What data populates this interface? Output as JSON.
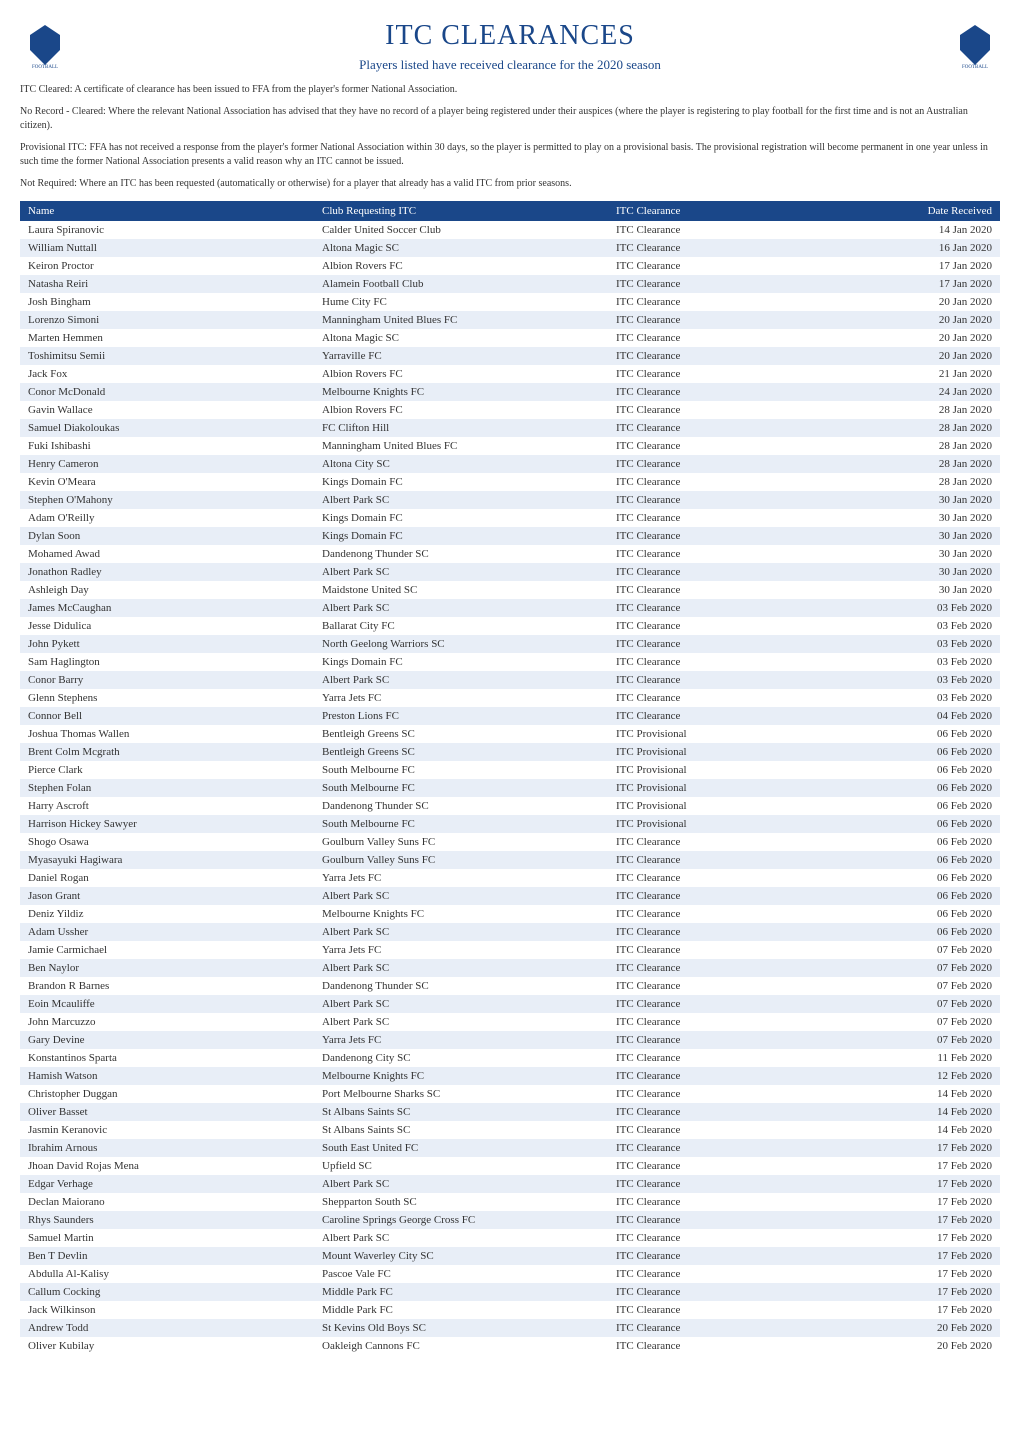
{
  "header": {
    "title": "ITC CLEARANCES",
    "subtitle": "Players listed have received clearance for the 2020 season"
  },
  "info": {
    "para1": "ITC Cleared: A certificate of clearance has been issued to FFA from the player's former National Association.",
    "para2": "No Record - Cleared: Where the relevant National Association has advised that they have no record of a player being registered under their auspices (where the player is registering to play football for the first time and is not an Australian citizen).",
    "para3": "Provisional ITC: FFA has not received a response from the player's former National Association within 30 days, so the player is permitted to play on a provisional basis. The provisional registration will become permanent in one year unless in such time the former National Association presents a valid reason why an ITC cannot be issued.",
    "para4": "Not Required: Where an ITC has been requested (automatically or otherwise) for a player that already has a valid ITC from prior seasons."
  },
  "table": {
    "headers": {
      "name": "Name",
      "club": "Club Requesting ITC",
      "clearance": "ITC Clearance",
      "date": "Date Received"
    },
    "rows": [
      {
        "name": "Laura Spiranovic",
        "club": "Calder United Soccer Club",
        "clearance": "ITC Clearance",
        "date": "14 Jan 2020"
      },
      {
        "name": "William Nuttall",
        "club": "Altona Magic SC",
        "clearance": "ITC Clearance",
        "date": "16 Jan 2020"
      },
      {
        "name": "Keiron Proctor",
        "club": "Albion Rovers FC",
        "clearance": "ITC Clearance",
        "date": "17 Jan 2020"
      },
      {
        "name": "Natasha Reiri",
        "club": "Alamein Football Club",
        "clearance": "ITC Clearance",
        "date": "17 Jan 2020"
      },
      {
        "name": "Josh Bingham",
        "club": "Hume City FC",
        "clearance": "ITC Clearance",
        "date": "20 Jan 2020"
      },
      {
        "name": "Lorenzo Simoni",
        "club": "Manningham United Blues FC",
        "clearance": "ITC Clearance",
        "date": "20 Jan 2020"
      },
      {
        "name": "Marten Hemmen",
        "club": "Altona Magic SC",
        "clearance": "ITC Clearance",
        "date": "20 Jan 2020"
      },
      {
        "name": "Toshimitsu Semii",
        "club": "Yarraville FC",
        "clearance": "ITC Clearance",
        "date": "20 Jan 2020"
      },
      {
        "name": "Jack Fox",
        "club": "Albion Rovers FC",
        "clearance": "ITC Clearance",
        "date": "21 Jan 2020"
      },
      {
        "name": "Conor McDonald",
        "club": "Melbourne Knights FC",
        "clearance": "ITC Clearance",
        "date": "24 Jan 2020"
      },
      {
        "name": "Gavin Wallace",
        "club": "Albion Rovers FC",
        "clearance": "ITC Clearance",
        "date": "28 Jan 2020"
      },
      {
        "name": "Samuel Diakoloukas",
        "club": "FC Clifton Hill",
        "clearance": "ITC Clearance",
        "date": "28 Jan 2020"
      },
      {
        "name": "Fuki Ishibashi",
        "club": "Manningham United Blues FC",
        "clearance": "ITC Clearance",
        "date": "28 Jan 2020"
      },
      {
        "name": "Henry Cameron",
        "club": "Altona City SC",
        "clearance": "ITC Clearance",
        "date": "28 Jan 2020"
      },
      {
        "name": "Kevin O'Meara",
        "club": "Kings Domain FC",
        "clearance": "ITC Clearance",
        "date": "28 Jan 2020"
      },
      {
        "name": "Stephen O'Mahony",
        "club": "Albert Park SC",
        "clearance": "ITC Clearance",
        "date": "30 Jan 2020"
      },
      {
        "name": "Adam O'Reilly",
        "club": "Kings Domain FC",
        "clearance": "ITC Clearance",
        "date": "30 Jan 2020"
      },
      {
        "name": "Dylan Soon",
        "club": "Kings Domain FC",
        "clearance": "ITC Clearance",
        "date": "30 Jan 2020"
      },
      {
        "name": "Mohamed Awad",
        "club": "Dandenong Thunder SC",
        "clearance": "ITC Clearance",
        "date": "30 Jan 2020"
      },
      {
        "name": "Jonathon Radley",
        "club": "Albert Park SC",
        "clearance": "ITC Clearance",
        "date": "30 Jan 2020"
      },
      {
        "name": "Ashleigh Day",
        "club": "Maidstone United SC",
        "clearance": "ITC Clearance",
        "date": "30 Jan 2020"
      },
      {
        "name": "James McCaughan",
        "club": "Albert Park SC",
        "clearance": "ITC Clearance",
        "date": "03 Feb 2020"
      },
      {
        "name": "Jesse Didulica",
        "club": "Ballarat City FC",
        "clearance": "ITC Clearance",
        "date": "03 Feb 2020"
      },
      {
        "name": "John Pykett",
        "club": "North Geelong Warriors SC",
        "clearance": "ITC Clearance",
        "date": "03 Feb 2020"
      },
      {
        "name": "Sam Haglington",
        "club": "Kings Domain FC",
        "clearance": "ITC Clearance",
        "date": "03 Feb 2020"
      },
      {
        "name": "Conor Barry",
        "club": "Albert Park SC",
        "clearance": "ITC Clearance",
        "date": "03 Feb 2020"
      },
      {
        "name": "Glenn Stephens",
        "club": "Yarra Jets FC",
        "clearance": "ITC Clearance",
        "date": "03 Feb 2020"
      },
      {
        "name": "Connor Bell",
        "club": "Preston Lions FC",
        "clearance": "ITC Clearance",
        "date": "04 Feb 2020"
      },
      {
        "name": "Joshua Thomas Wallen",
        "club": "Bentleigh Greens SC",
        "clearance": "ITC Provisional",
        "date": "06 Feb 2020"
      },
      {
        "name": "Brent Colm Mcgrath",
        "club": "Bentleigh Greens SC",
        "clearance": "ITC Provisional",
        "date": "06 Feb 2020"
      },
      {
        "name": "Pierce Clark",
        "club": "South Melbourne FC",
        "clearance": "ITC Provisional",
        "date": "06 Feb 2020"
      },
      {
        "name": "Stephen Folan",
        "club": "South Melbourne FC",
        "clearance": "ITC Provisional",
        "date": "06 Feb 2020"
      },
      {
        "name": "Harry Ascroft",
        "club": "Dandenong Thunder SC",
        "clearance": "ITC Provisional",
        "date": "06 Feb 2020"
      },
      {
        "name": "Harrison Hickey Sawyer",
        "club": "South Melbourne FC",
        "clearance": "ITC Provisional",
        "date": "06 Feb 2020"
      },
      {
        "name": "Shogo Osawa",
        "club": "Goulburn Valley Suns FC",
        "clearance": "ITC Clearance",
        "date": "06 Feb 2020"
      },
      {
        "name": "Myasayuki Hagiwara",
        "club": "Goulburn Valley Suns FC",
        "clearance": "ITC Clearance",
        "date": "06 Feb 2020"
      },
      {
        "name": "Daniel Rogan",
        "club": "Yarra Jets FC",
        "clearance": "ITC Clearance",
        "date": "06 Feb 2020"
      },
      {
        "name": "Jason Grant",
        "club": "Albert Park SC",
        "clearance": "ITC Clearance",
        "date": "06 Feb 2020"
      },
      {
        "name": "Deniz Yildiz",
        "club": "Melbourne Knights FC",
        "clearance": "ITC Clearance",
        "date": "06 Feb 2020"
      },
      {
        "name": "Adam Ussher",
        "club": "Albert Park SC",
        "clearance": "ITC Clearance",
        "date": "06 Feb 2020"
      },
      {
        "name": "Jamie Carmichael",
        "club": "Yarra Jets FC",
        "clearance": "ITC Clearance",
        "date": "07 Feb 2020"
      },
      {
        "name": "Ben Naylor",
        "club": "Albert Park SC",
        "clearance": "ITC Clearance",
        "date": "07 Feb 2020"
      },
      {
        "name": "Brandon R Barnes",
        "club": "Dandenong Thunder SC",
        "clearance": "ITC Clearance",
        "date": "07 Feb 2020"
      },
      {
        "name": "Eoin Mcauliffe",
        "club": "Albert Park SC",
        "clearance": "ITC Clearance",
        "date": "07 Feb 2020"
      },
      {
        "name": "John Marcuzzo",
        "club": "Albert Park SC",
        "clearance": "ITC Clearance",
        "date": "07 Feb 2020"
      },
      {
        "name": "Gary Devine",
        "club": "Yarra Jets FC",
        "clearance": "ITC Clearance",
        "date": "07 Feb 2020"
      },
      {
        "name": "Konstantinos Sparta",
        "club": "Dandenong City SC",
        "clearance": "ITC Clearance",
        "date": "11 Feb 2020"
      },
      {
        "name": "Hamish Watson",
        "club": "Melbourne Knights FC",
        "clearance": "ITC Clearance",
        "date": "12 Feb 2020"
      },
      {
        "name": "Christopher Duggan",
        "club": "Port Melbourne Sharks SC",
        "clearance": "ITC Clearance",
        "date": "14 Feb 2020"
      },
      {
        "name": "Oliver Basset",
        "club": "St Albans Saints SC",
        "clearance": "ITC Clearance",
        "date": "14 Feb 2020"
      },
      {
        "name": "Jasmin Keranovic",
        "club": "St Albans Saints SC",
        "clearance": "ITC Clearance",
        "date": "14 Feb 2020"
      },
      {
        "name": "Ibrahim Arnous",
        "club": "South East United FC",
        "clearance": "ITC Clearance",
        "date": "17 Feb 2020"
      },
      {
        "name": "Jhoan David Rojas Mena",
        "club": "Upfield SC",
        "clearance": "ITC Clearance",
        "date": "17 Feb 2020"
      },
      {
        "name": "Edgar Verhage",
        "club": "Albert Park SC",
        "clearance": "ITC Clearance",
        "date": "17 Feb 2020"
      },
      {
        "name": "Declan Maiorano",
        "club": "Shepparton South SC",
        "clearance": "ITC Clearance",
        "date": "17 Feb 2020"
      },
      {
        "name": "Rhys Saunders",
        "club": "Caroline Springs George Cross FC",
        "clearance": "ITC Clearance",
        "date": "17 Feb 2020"
      },
      {
        "name": "Samuel Martin",
        "club": "Albert Park SC",
        "clearance": "ITC Clearance",
        "date": "17 Feb 2020"
      },
      {
        "name": "Ben T Devlin",
        "club": "Mount Waverley City SC",
        "clearance": "ITC Clearance",
        "date": "17 Feb 2020"
      },
      {
        "name": "Abdulla Al-Kalisy",
        "club": "Pascoe Vale FC",
        "clearance": "ITC Clearance",
        "date": "17 Feb 2020"
      },
      {
        "name": "Callum Cocking",
        "club": "Middle Park FC",
        "clearance": "ITC Clearance",
        "date": "17 Feb 2020"
      },
      {
        "name": "Jack Wilkinson",
        "club": "Middle Park FC",
        "clearance": "ITC Clearance",
        "date": "17 Feb 2020"
      },
      {
        "name": "Andrew Todd",
        "club": "St Kevins Old Boys SC",
        "clearance": "ITC Clearance",
        "date": "20 Feb 2020"
      },
      {
        "name": "Oliver Kubilay",
        "club": "Oakleigh Cannons FC",
        "clearance": "ITC Clearance",
        "date": "20 Feb 2020"
      }
    ]
  },
  "styling": {
    "header_bg": "#1a4789",
    "header_color": "#ffffff",
    "row_even_bg": "#e8eef7",
    "row_odd_bg": "#ffffff",
    "title_color": "#1a4789",
    "logo_color": "#1a4789"
  }
}
